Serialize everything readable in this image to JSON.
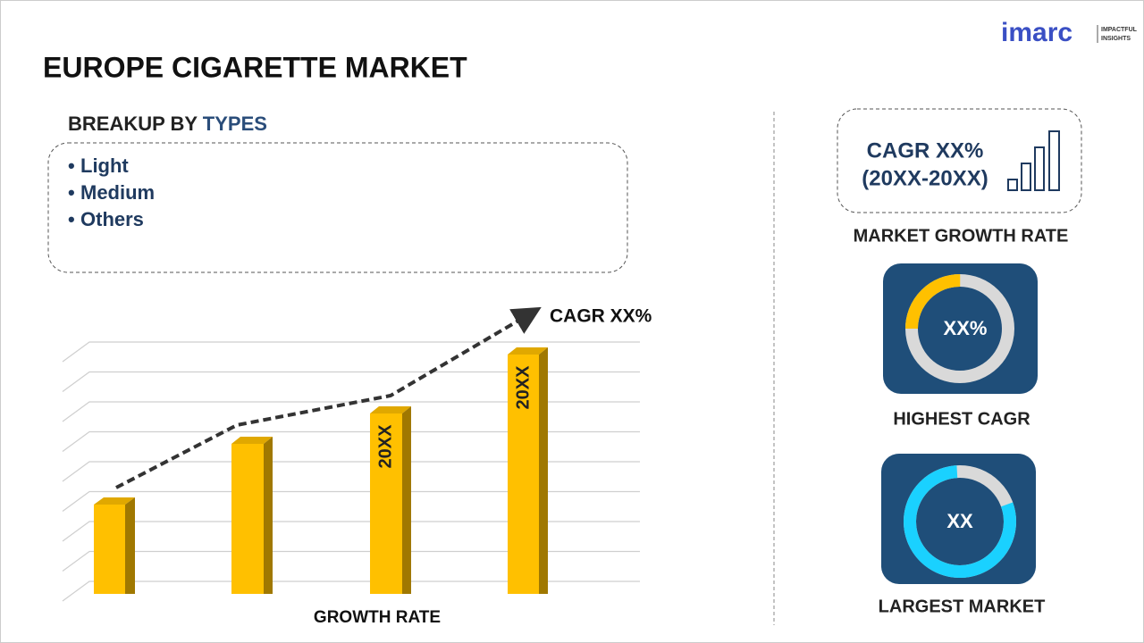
{
  "header": {
    "title": "EUROPE CIGARETTE MARKET",
    "logo": "imarc",
    "logo_tagline": [
      "IMPACTFUL",
      "INSIGHTS"
    ]
  },
  "breakup": {
    "label": "BREAKUP BY",
    "highlight": "TYPES",
    "items": [
      "Light",
      "Medium",
      "Others"
    ]
  },
  "growth_chart": {
    "bar_labels": [
      "20XX",
      "20XX"
    ],
    "trend_label": "CAGR XX%",
    "x_label": "GROWTH RATE"
  },
  "sidebar": {
    "cagr": {
      "line1": "CAGR XX%",
      "line2": "(20XX-20XX)",
      "caption": "MARKET GROWTH RATE"
    },
    "highest": {
      "value": "XX%",
      "caption": "HIGHEST CAGR"
    },
    "largest": {
      "value": "XX",
      "caption": "LARGEST MARKET"
    }
  }
}
